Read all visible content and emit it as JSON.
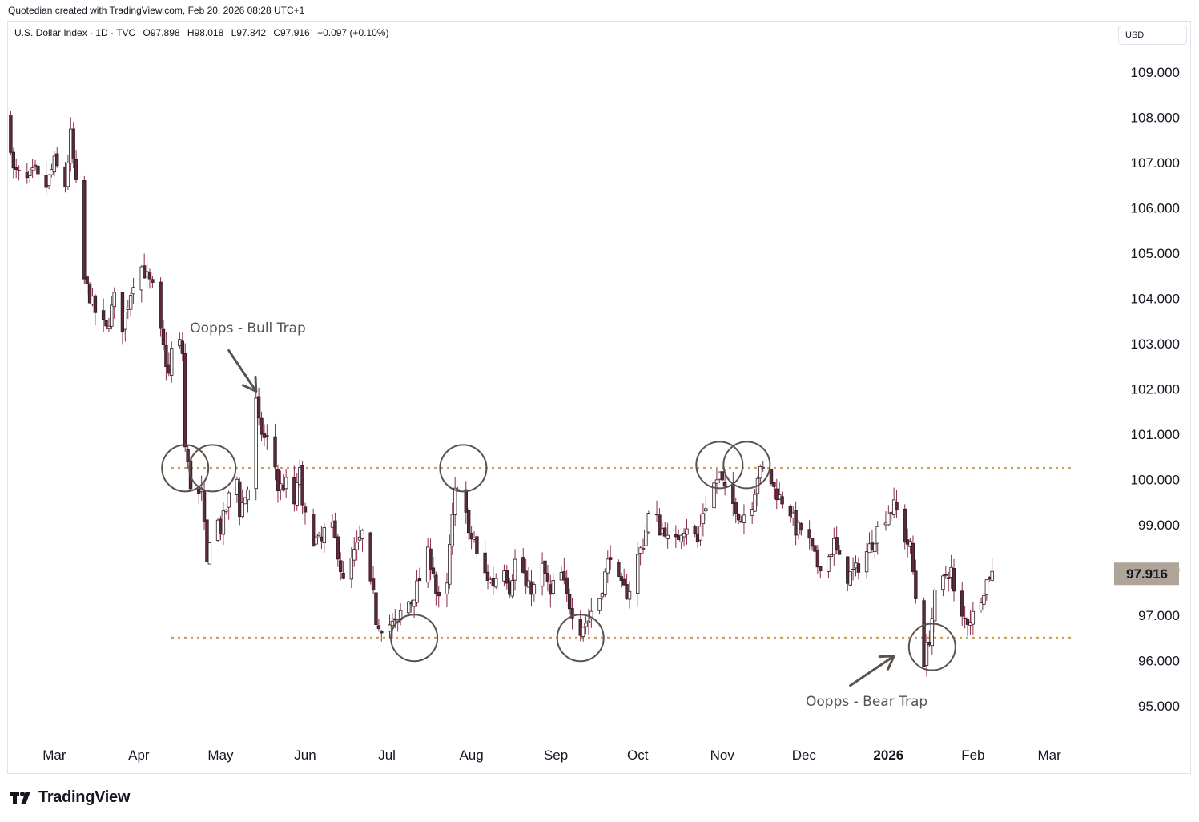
{
  "header": {
    "caption": "Quotedian created with TradingView.com, Feb 20, 2026 08:28 UTC+1"
  },
  "legend": {
    "symbol": "U.S. Dollar Index · 1D · TVC",
    "open": "O97.898",
    "high": "H98.018",
    "low": "L97.842",
    "close": "C97.916",
    "change": "+0.097 (+0.10%)"
  },
  "currency_label": "USD",
  "footer": {
    "brand": "TradingView"
  },
  "colors": {
    "candle_up": "#ffffff",
    "candle_down": "#5d2a3d",
    "candle_border": "#2b1a22",
    "wick": "#8a2a4a",
    "level_line": "#c8a165",
    "annotation": "#5a524c",
    "price_tag_bg": "#aea598"
  },
  "chart_data": {
    "type": "candlestick",
    "ylim": [
      94.3,
      110.0
    ],
    "y_ticks": [
      "95.000",
      "96.000",
      "97.000",
      "98.000",
      "99.000",
      "100.000",
      "101.000",
      "102.000",
      "103.000",
      "104.000",
      "105.000",
      "106.000",
      "107.000",
      "108.000",
      "109.000"
    ],
    "x_ticks": [
      {
        "label": "Mar",
        "day": 10
      },
      {
        "label": "Apr",
        "day": 41
      },
      {
        "label": "May",
        "day": 71
      },
      {
        "label": "Jun",
        "day": 102
      },
      {
        "label": "Jul",
        "day": 132
      },
      {
        "label": "Aug",
        "day": 163
      },
      {
        "label": "Sep",
        "day": 194
      },
      {
        "label": "Oct",
        "day": 224
      },
      {
        "label": "Nov",
        "day": 255
      },
      {
        "label": "Dec",
        "day": 285
      },
      {
        "label": "2026",
        "day": 316,
        "bold": true
      },
      {
        "label": "Feb",
        "day": 347
      },
      {
        "label": "Mar",
        "day": 375
      }
    ],
    "x_range": [
      -7,
      392
    ],
    "anchors": [
      [
        -7,
        108.0
      ],
      [
        -5,
        106.8
      ],
      [
        0,
        106.6
      ],
      [
        3,
        106.8
      ],
      [
        6,
        106.3
      ],
      [
        10,
        107.0
      ],
      [
        14,
        106.5
      ],
      [
        16,
        107.6
      ],
      [
        19,
        105.9
      ],
      [
        21,
        104.4
      ],
      [
        25,
        103.7
      ],
      [
        29,
        103.3
      ],
      [
        32,
        104.0
      ],
      [
        35,
        103.4
      ],
      [
        39,
        104.4
      ],
      [
        42,
        104.7
      ],
      [
        47,
        104.1
      ],
      [
        49,
        103.2
      ],
      [
        52,
        102.3
      ],
      [
        54,
        103.4
      ],
      [
        57,
        102.8
      ],
      [
        58,
        100.7
      ],
      [
        61,
        99.5
      ],
      [
        64,
        99.7
      ],
      [
        66,
        98.1
      ],
      [
        68,
        99.4
      ],
      [
        71,
        98.9
      ],
      [
        74,
        99.6
      ],
      [
        77,
        100.0
      ],
      [
        78,
        99.3
      ],
      [
        81,
        99.8
      ],
      [
        82,
        100.2
      ],
      [
        84,
        101.7
      ],
      [
        85,
        101.2
      ],
      [
        87,
        100.9
      ],
      [
        90,
        100.8
      ],
      [
        92,
        99.8
      ],
      [
        95,
        99.9
      ],
      [
        97,
        99.1
      ],
      [
        99,
        99.8
      ],
      [
        100,
        100.3
      ],
      [
        101,
        99.3
      ],
      [
        103,
        99.0
      ],
      [
        105,
        98.7
      ],
      [
        108,
        98.6
      ],
      [
        110,
        99.1
      ],
      [
        112,
        98.9
      ],
      [
        114,
        98.4
      ],
      [
        116,
        97.7
      ],
      [
        119,
        98.2
      ],
      [
        121,
        98.5
      ],
      [
        123,
        98.8
      ],
      [
        125,
        97.8
      ],
      [
        127,
        97.4
      ],
      [
        128,
        96.9
      ],
      [
        131,
        96.7
      ],
      [
        133,
        96.8
      ],
      [
        136,
        96.8
      ],
      [
        138,
        97.3
      ],
      [
        141,
        97.3
      ],
      [
        144,
        97.8
      ],
      [
        146,
        98.5
      ],
      [
        149,
        98.0
      ],
      [
        150,
        97.5
      ],
      [
        152,
        97.1
      ],
      [
        154,
        97.6
      ],
      [
        155,
        98.5
      ],
      [
        157,
        99.7
      ],
      [
        159,
        100.1
      ],
      [
        160,
        99.8
      ],
      [
        162,
        98.7
      ],
      [
        164,
        98.7
      ],
      [
        166,
        97.9
      ],
      [
        168,
        97.9
      ],
      [
        171,
        97.7
      ],
      [
        173,
        98.0
      ],
      [
        175,
        98.1
      ],
      [
        177,
        97.6
      ],
      [
        179,
        98.2
      ],
      [
        181,
        98.3
      ],
      [
        183,
        97.6
      ],
      [
        186,
        97.6
      ],
      [
        188,
        98.2
      ],
      [
        190,
        97.9
      ],
      [
        192,
        97.4
      ],
      [
        194,
        97.9
      ],
      [
        196,
        97.9
      ],
      [
        198,
        97.4
      ],
      [
        200,
        97.1
      ],
      [
        202,
        96.6
      ],
      [
        204,
        96.8
      ],
      [
        206,
        96.9
      ],
      [
        208,
        97.3
      ],
      [
        210,
        97.4
      ],
      [
        212,
        97.9
      ],
      [
        214,
        98.4
      ],
      [
        216,
        97.8
      ],
      [
        218,
        97.6
      ],
      [
        220,
        97.5
      ],
      [
        222,
        97.7
      ],
      [
        224,
        98.3
      ],
      [
        226,
        98.6
      ],
      [
        228,
        99.2
      ],
      [
        230,
        99.3
      ],
      [
        232,
        98.9
      ],
      [
        234,
        98.9
      ],
      [
        236,
        98.4
      ],
      [
        238,
        98.6
      ],
      [
        240,
        98.9
      ],
      [
        242,
        99.0
      ],
      [
        244,
        98.9
      ],
      [
        246,
        98.6
      ],
      [
        248,
        99.3
      ],
      [
        250,
        99.6
      ],
      [
        252,
        99.9
      ],
      [
        254,
        100.1
      ],
      [
        256,
        99.7
      ],
      [
        258,
        99.5
      ],
      [
        260,
        99.4
      ],
      [
        262,
        99.1
      ],
      [
        264,
        99.4
      ],
      [
        266,
        99.5
      ],
      [
        268,
        100.1
      ],
      [
        270,
        100.2
      ],
      [
        272,
        100.1
      ],
      [
        274,
        99.8
      ],
      [
        276,
        99.6
      ],
      [
        278,
        99.5
      ],
      [
        280,
        99.3
      ],
      [
        282,
        98.9
      ],
      [
        284,
        98.9
      ],
      [
        286,
        98.8
      ],
      [
        288,
        98.4
      ],
      [
        290,
        98.1
      ],
      [
        292,
        98.2
      ],
      [
        294,
        98.3
      ],
      [
        296,
        98.6
      ],
      [
        298,
        98.2
      ],
      [
        300,
        97.8
      ],
      [
        302,
        97.9
      ],
      [
        304,
        98.0
      ],
      [
        306,
        98.2
      ],
      [
        308,
        98.4
      ],
      [
        310,
        98.6
      ],
      [
        312,
        98.9
      ],
      [
        314,
        99.1
      ],
      [
        316,
        99.3
      ],
      [
        318,
        99.4
      ],
      [
        320,
        99.2
      ],
      [
        322,
        98.7
      ],
      [
        324,
        98.5
      ],
      [
        326,
        97.4
      ],
      [
        327,
        96.1
      ],
      [
        329,
        96.0
      ],
      [
        331,
        96.5
      ],
      [
        333,
        97.4
      ],
      [
        335,
        97.6
      ],
      [
        337,
        97.9
      ],
      [
        339,
        98.0
      ],
      [
        341,
        96.9
      ],
      [
        343,
        96.9
      ],
      [
        345,
        96.9
      ],
      [
        347,
        97.0
      ],
      [
        349,
        97.3
      ],
      [
        351,
        97.6
      ],
      [
        353,
        97.9
      ],
      [
        354,
        97.92
      ]
    ],
    "levels": [
      {
        "name": "resistance",
        "price": 100.25
      },
      {
        "name": "support",
        "price": 96.5
      }
    ],
    "circles": [
      {
        "day": 58,
        "price": 100.25
      },
      {
        "day": 68,
        "price": 100.25
      },
      {
        "day": 142,
        "price": 96.5
      },
      {
        "day": 160,
        "price": 100.25
      },
      {
        "day": 203,
        "price": 96.5
      },
      {
        "day": 254,
        "price": 100.32
      },
      {
        "day": 264,
        "price": 100.32
      },
      {
        "day": 332,
        "price": 96.3
      }
    ],
    "annotations": [
      {
        "text": "Oopps - Bull Trap",
        "day": 81,
        "price": 103.25
      },
      {
        "text": "Oopps - Bear Trap",
        "day": 308,
        "price": 95.0
      }
    ],
    "arrows": [
      {
        "name": "bull-trap-arrow",
        "from": {
          "day": 74,
          "price": 102.85
        },
        "to": {
          "day": 84,
          "price": 101.95
        }
      },
      {
        "name": "bear-trap-arrow",
        "from": {
          "day": 302,
          "price": 95.45
        },
        "to": {
          "day": 318,
          "price": 96.1
        }
      }
    ],
    "last_price": "97.916",
    "last_price_value": 97.916
  }
}
